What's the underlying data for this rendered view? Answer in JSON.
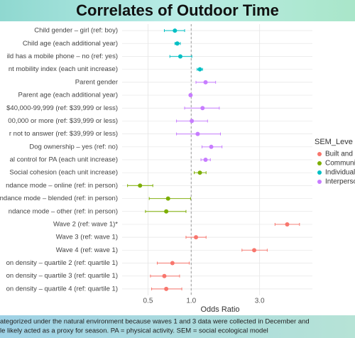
{
  "chart_data": {
    "type": "forest",
    "title": "Correlates of Outdoor Time",
    "x_label": "Odds Ratio",
    "legend_title": "SEM_Leve",
    "x_scale": "log",
    "xlim": [
      0.33,
      7.0
    ],
    "xticks": [
      0.5,
      {
        "value": 1,
        "label": "1.0"
      },
      {
        "value": 3,
        "label": "3.0"
      }
    ],
    "grid": true,
    "reference_line": 1,
    "categories": [
      "Child gender – girl (ref: boy)",
      "Child age (each additional year)",
      "ild has a mobile phone – no (ref: yes)",
      "nt mobility index (each unit increase)",
      "Parent gender",
      "Parent age (each additional year)",
      "$40,000-99,999 (ref: $39,999 or less)",
      "00,000 or more (ref: $39,999 or less)",
      "r not to answer (ref: $39,999 or less)",
      "Dog ownership – yes (ref: no)",
      "al control for PA (each unit increase)",
      "Social cohesion (each unit increase)",
      "ndance mode – online (ref: in person)",
      "ndance mode – blended (ref: in person)",
      "ndance mode – other (ref: in person)",
      "Wave 2 (ref: wave 1)*",
      "Wave 3 (ref: wave 1)",
      "Wave 4 (ref: wave 1)",
      "on density – quartile 2 (ref: quartile 1)",
      "on density – quartile 3 (ref: quartile 1)",
      "on density – quartile 4 (ref: quartile 1)"
    ],
    "series": [
      {
        "name": "Built and p",
        "color": "#f8766d",
        "values": [
          null,
          null,
          null,
          null,
          null,
          null,
          null,
          null,
          null,
          null,
          null,
          null,
          null,
          null,
          null,
          4.67,
          1.08,
          2.75,
          0.74,
          0.65,
          0.67
        ],
        "ci_low": [
          null,
          null,
          null,
          null,
          null,
          null,
          null,
          null,
          null,
          null,
          null,
          null,
          null,
          null,
          null,
          3.84,
          0.92,
          2.26,
          0.58,
          0.52,
          0.53
        ],
        "ci_high": [
          null,
          null,
          null,
          null,
          null,
          null,
          null,
          null,
          null,
          null,
          null,
          null,
          null,
          null,
          null,
          5.69,
          1.27,
          3.39,
          0.97,
          0.83,
          0.86
        ]
      },
      {
        "name": "Communi",
        "color": "#7cae00",
        "values": [
          null,
          null,
          null,
          null,
          null,
          null,
          null,
          null,
          null,
          null,
          null,
          1.15,
          0.44,
          0.69,
          0.67,
          null,
          null,
          null,
          null,
          null,
          null
        ],
        "ci_low": [
          null,
          null,
          null,
          null,
          null,
          null,
          null,
          null,
          null,
          null,
          null,
          1.05,
          0.36,
          0.51,
          0.48,
          null,
          null,
          null,
          null,
          null,
          null
        ],
        "ci_high": [
          null,
          null,
          null,
          null,
          null,
          null,
          null,
          null,
          null,
          null,
          null,
          1.27,
          0.54,
          0.99,
          0.92,
          null,
          null,
          null,
          null,
          null,
          null
        ]
      },
      {
        "name": "Individual",
        "color": "#00bfc4",
        "values": [
          0.77,
          0.8,
          0.84,
          1.15,
          null,
          null,
          null,
          null,
          null,
          null,
          null,
          null,
          null,
          null,
          null,
          null,
          null,
          null,
          null,
          null,
          null
        ],
        "ci_low": [
          0.65,
          0.77,
          0.71,
          1.1,
          null,
          null,
          null,
          null,
          null,
          null,
          null,
          null,
          null,
          null,
          null,
          null,
          null,
          null,
          null,
          null,
          null
        ],
        "ci_high": [
          0.9,
          0.84,
          1.01,
          1.2,
          null,
          null,
          null,
          null,
          null,
          null,
          null,
          null,
          null,
          null,
          null,
          null,
          null,
          null,
          null,
          null,
          null
        ]
      },
      {
        "name": "Interperso",
        "color": "#c77cff",
        "values": [
          null,
          null,
          null,
          null,
          1.26,
          0.99,
          1.2,
          1.01,
          1.11,
          1.38,
          1.26,
          null,
          null,
          null,
          null,
          null,
          null,
          null,
          null,
          null,
          null
        ],
        "ci_low": [
          null,
          null,
          null,
          null,
          1.08,
          0.97,
          0.9,
          0.79,
          0.79,
          1.19,
          1.17,
          null,
          null,
          null,
          null,
          null,
          null,
          null,
          null,
          null,
          null
        ],
        "ci_high": [
          null,
          null,
          null,
          null,
          1.48,
          1.01,
          1.57,
          1.3,
          1.6,
          1.64,
          1.36,
          null,
          null,
          null,
          null,
          null,
          null,
          null,
          null,
          null,
          null
        ]
      }
    ],
    "footnote": [
      "ategorized under the natural environment because waves 1 and 3 data were collected in December and",
      "le likely acted as a proxy for season. PA = physical activity. SEM = social ecological model"
    ]
  }
}
